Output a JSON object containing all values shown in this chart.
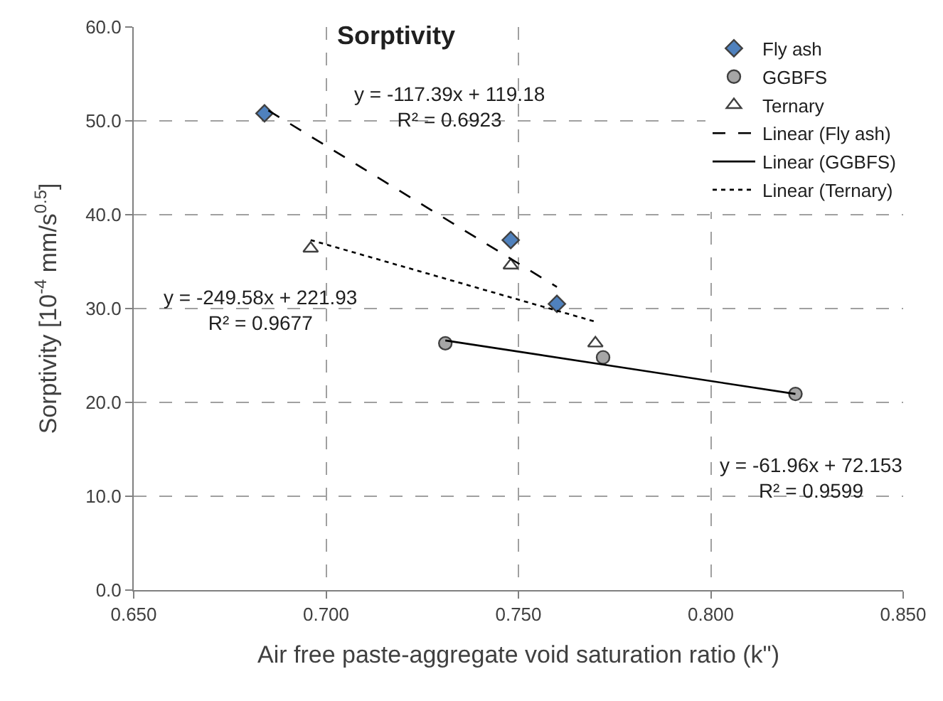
{
  "chart_data": {
    "type": "scatter",
    "title": "Sorptivity",
    "xlabel": "Air free paste-aggregate void saturation ratio (k\")",
    "ylabel": "Sorptivity [10$^{-4}$ mm/s$^{0.5}$]",
    "xlim": [
      0.65,
      0.85
    ],
    "xticks": [
      {
        "value": 0.65,
        "label": "0.650"
      },
      {
        "value": 0.7,
        "label": "0.700"
      },
      {
        "value": 0.75,
        "label": "0.750"
      },
      {
        "value": 0.8,
        "label": "0.800"
      },
      {
        "value": 0.85,
        "label": "0.850"
      }
    ],
    "ylim": [
      0,
      60
    ],
    "yticks": [
      {
        "value": 0,
        "label": "0.0"
      },
      {
        "value": 10,
        "label": "10.0"
      },
      {
        "value": 20,
        "label": "20.0"
      },
      {
        "value": 30,
        "label": "30.0"
      },
      {
        "value": 40,
        "label": "40.0"
      },
      {
        "value": 50,
        "label": "50.0"
      },
      {
        "value": 60,
        "label": "60.0"
      }
    ],
    "grid": true,
    "legend": "top right",
    "series": [
      {
        "name": "Fly ash",
        "marker": "diamond",
        "color": "#4f81bd",
        "x": [
          0.684,
          0.748,
          0.76
        ],
        "values": [
          50.8,
          37.3,
          30.5
        ]
      },
      {
        "name": "GGBFS",
        "marker": "circle",
        "color": "#a6a6a6",
        "x": [
          0.731,
          0.772,
          0.822
        ],
        "values": [
          26.3,
          24.8,
          20.9
        ]
      },
      {
        "name": "Ternary",
        "marker": "triangle",
        "color": "#ffffff",
        "x": [
          0.696,
          0.748,
          0.77
        ],
        "values": [
          36.4,
          34.6,
          26.3
        ]
      },
      {
        "name": "Linear (Fly ash)",
        "type": "line",
        "line_style": "dashed",
        "color": "#000000",
        "x": [
          0.685,
          0.76
        ],
        "values": [
          51.1,
          32.3
        ]
      },
      {
        "name": "Linear (GGBFS)",
        "type": "line",
        "line_style": "solid",
        "color": "#000000",
        "x": [
          0.731,
          0.822
        ],
        "values": [
          26.6,
          20.9
        ]
      },
      {
        "name": "Linear (Ternary)",
        "type": "line",
        "line_style": "dotted",
        "color": "#000000",
        "x": [
          0.696,
          0.77
        ],
        "values": [
          37.3,
          28.6
        ]
      }
    ],
    "annotations": [
      "y = -117.39x + 119.18\nR² = 0.6923",
      "y = -249.58x + 221.93\nR² = 0.9677",
      "y = -61.96x + 72.153\nR² = 0.9599"
    ]
  }
}
